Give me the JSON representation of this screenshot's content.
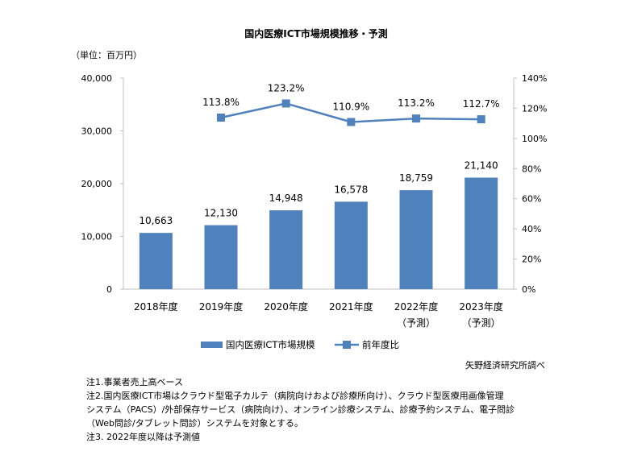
{
  "chart_data": {
    "type": "bar",
    "title": "国内医療ICT市場規模推移・予測",
    "unit_label": "（単位：百万円）",
    "categories": [
      [
        "2018年度"
      ],
      [
        "2019年度"
      ],
      [
        "2020年度"
      ],
      [
        "2021年度"
      ],
      [
        "2022年度",
        "（予測）"
      ],
      [
        "2023年度",
        "（予測）"
      ]
    ],
    "series": [
      {
        "name": "国内医療ICT市場規模",
        "type": "bar",
        "axis": "left",
        "color": "#4F81BD",
        "values": [
          10663,
          12130,
          14948,
          16578,
          18759,
          21140
        ],
        "labels": [
          "10,663",
          "12,130",
          "14,948",
          "16,578",
          "18,759",
          "21,140"
        ]
      },
      {
        "name": "前年度比",
        "type": "line",
        "axis": "right",
        "color": "#4F81BD",
        "values": [
          null,
          113.8,
          123.2,
          110.9,
          113.2,
          112.7
        ],
        "labels": [
          "",
          "113.8%",
          "123.2%",
          "110.9%",
          "113.2%",
          "112.7%"
        ]
      }
    ],
    "y_left": {
      "ylim": [
        0,
        40000
      ],
      "ticks": [
        "0",
        "10,000",
        "20,000",
        "30,000",
        "40,000"
      ]
    },
    "y_right": {
      "ylim": [
        0,
        140
      ],
      "ticks": [
        "0%",
        "20%",
        "40%",
        "60%",
        "80%",
        "100%",
        "120%",
        "140%"
      ]
    },
    "grid": false,
    "legend_position": "bottom",
    "source": "矢野経済研究所調べ"
  },
  "notes": [
    "注1.事業者売上高ベース",
    "注2.国内医療ICT市場はクラウド型電子カルテ（病院向けおよび診療所向け）、クラウド型医療用画像管理",
    "システム（PACS）/外部保存サービス（病院向け）、オンライン診療システム、診療予約システム、電子問診",
    "（Web問診/タブレット問診）システムを対象とする。",
    "注3. 2022年度以降は予測値"
  ]
}
